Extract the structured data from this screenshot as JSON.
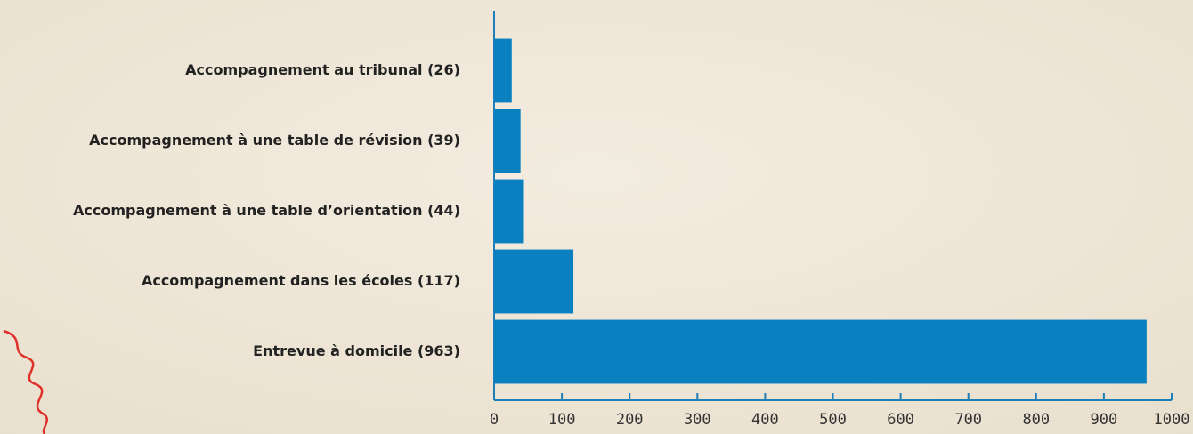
{
  "chart_data": {
    "type": "barh",
    "categories": [
      "Accompagnement au tribunal (26)",
      "Accompagnement à une table de révision (39)",
      "Accompagnement à une table d’orientation (44)",
      "Accompagnement dans les écoles (117)",
      "Entrevue à domicile (963)"
    ],
    "values": [
      26,
      39,
      44,
      117,
      963
    ],
    "color": "#0a80c1",
    "xlim": [
      0,
      1000
    ],
    "xticks": [
      0,
      100,
      200,
      300,
      400,
      500,
      600,
      700,
      800,
      900,
      1000
    ]
  }
}
